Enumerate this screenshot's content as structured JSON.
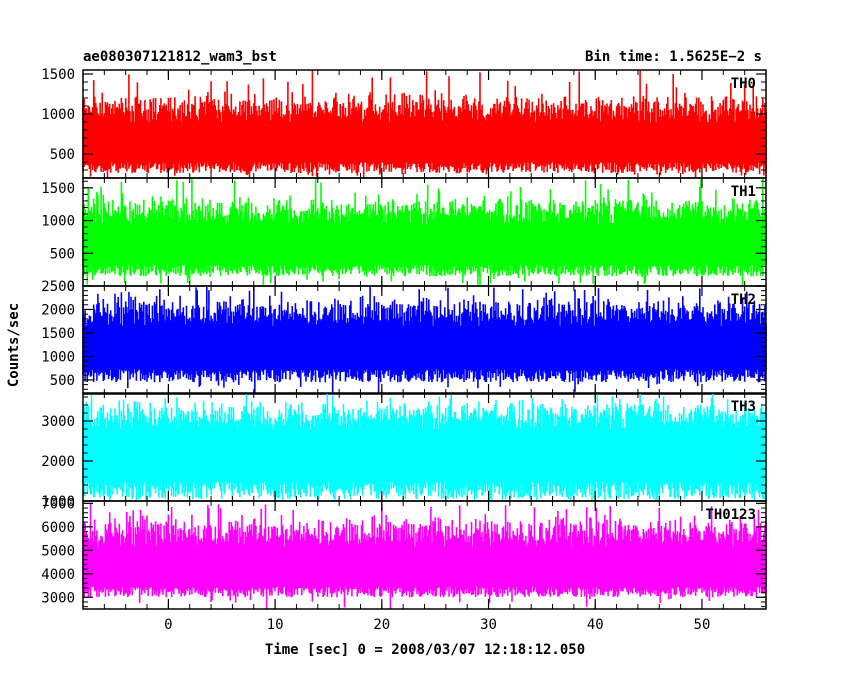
{
  "header": {
    "title": "ae080307121812_wam3_bst",
    "bin_time": "Bin time: 1.5625E−2 s"
  },
  "chart_data": {
    "type": "line",
    "xlabel": "Time [sec] 0 = 2008/03/07 12:18:12.050",
    "ylabel": "Counts/sec",
    "xlim": [
      -8,
      56
    ],
    "x_ticks": [
      {
        "value": 0,
        "label": "0"
      },
      {
        "value": 10,
        "label": "10"
      },
      {
        "value": 20,
        "label": "20"
      },
      {
        "value": 30,
        "label": "30"
      },
      {
        "value": 40,
        "label": "40"
      },
      {
        "value": 50,
        "label": "50"
      }
    ],
    "bin_time_s": 0.015625,
    "panels": [
      {
        "name": "TH0",
        "color": "#ff0000",
        "ylim": [
          200,
          1550
        ],
        "base": 260,
        "mean": 650,
        "peak_max": 1550,
        "peak_typ": 1200,
        "ticks": [
          {
            "value": 500,
            "label": "500"
          },
          {
            "value": 1000,
            "label": "1000"
          },
          {
            "value": 1500,
            "label": "1500"
          }
        ]
      },
      {
        "name": "TH1",
        "color": "#00ff00",
        "ylim": [
          0,
          1650
        ],
        "base": 150,
        "mean": 650,
        "peak_max": 1650,
        "peak_typ": 1300,
        "ticks": [
          {
            "value": 0,
            "label": "0"
          },
          {
            "value": 500,
            "label": "500"
          },
          {
            "value": 1000,
            "label": "1000"
          },
          {
            "value": 1500,
            "label": "1500"
          }
        ]
      },
      {
        "name": "TH2",
        "color": "#0000ff",
        "ylim": [
          200,
          2500
        ],
        "base": 450,
        "mean": 1250,
        "peak_max": 2500,
        "peak_typ": 2150,
        "ticks": [
          {
            "value": 500,
            "label": "500"
          },
          {
            "value": 1000,
            "label": "1000"
          },
          {
            "value": 1500,
            "label": "1500"
          },
          {
            "value": 2000,
            "label": "2000"
          },
          {
            "value": 2500,
            "label": "2500"
          }
        ]
      },
      {
        "name": "TH3",
        "color": "#00ffff",
        "ylim": [
          1000,
          3700
        ],
        "base": 1050,
        "mean": 2300,
        "peak_max": 3700,
        "peak_typ": 3400,
        "ticks": [
          {
            "value": 1000,
            "label": "1000"
          },
          {
            "value": 2000,
            "label": "2000"
          },
          {
            "value": 3000,
            "label": "3000"
          }
        ]
      },
      {
        "name": "TH0123",
        "color": "#ff00ff",
        "ylim": [
          2500,
          7100
        ],
        "base": 3000,
        "mean": 4300,
        "peak_max": 7000,
        "peak_typ": 6200,
        "ticks": [
          {
            "value": 3000,
            "label": "3000"
          },
          {
            "value": 4000,
            "label": "4000"
          },
          {
            "value": 5000,
            "label": "5000"
          },
          {
            "value": 6000,
            "label": "6000"
          },
          {
            "value": 7000,
            "label": "7000"
          }
        ]
      }
    ]
  }
}
